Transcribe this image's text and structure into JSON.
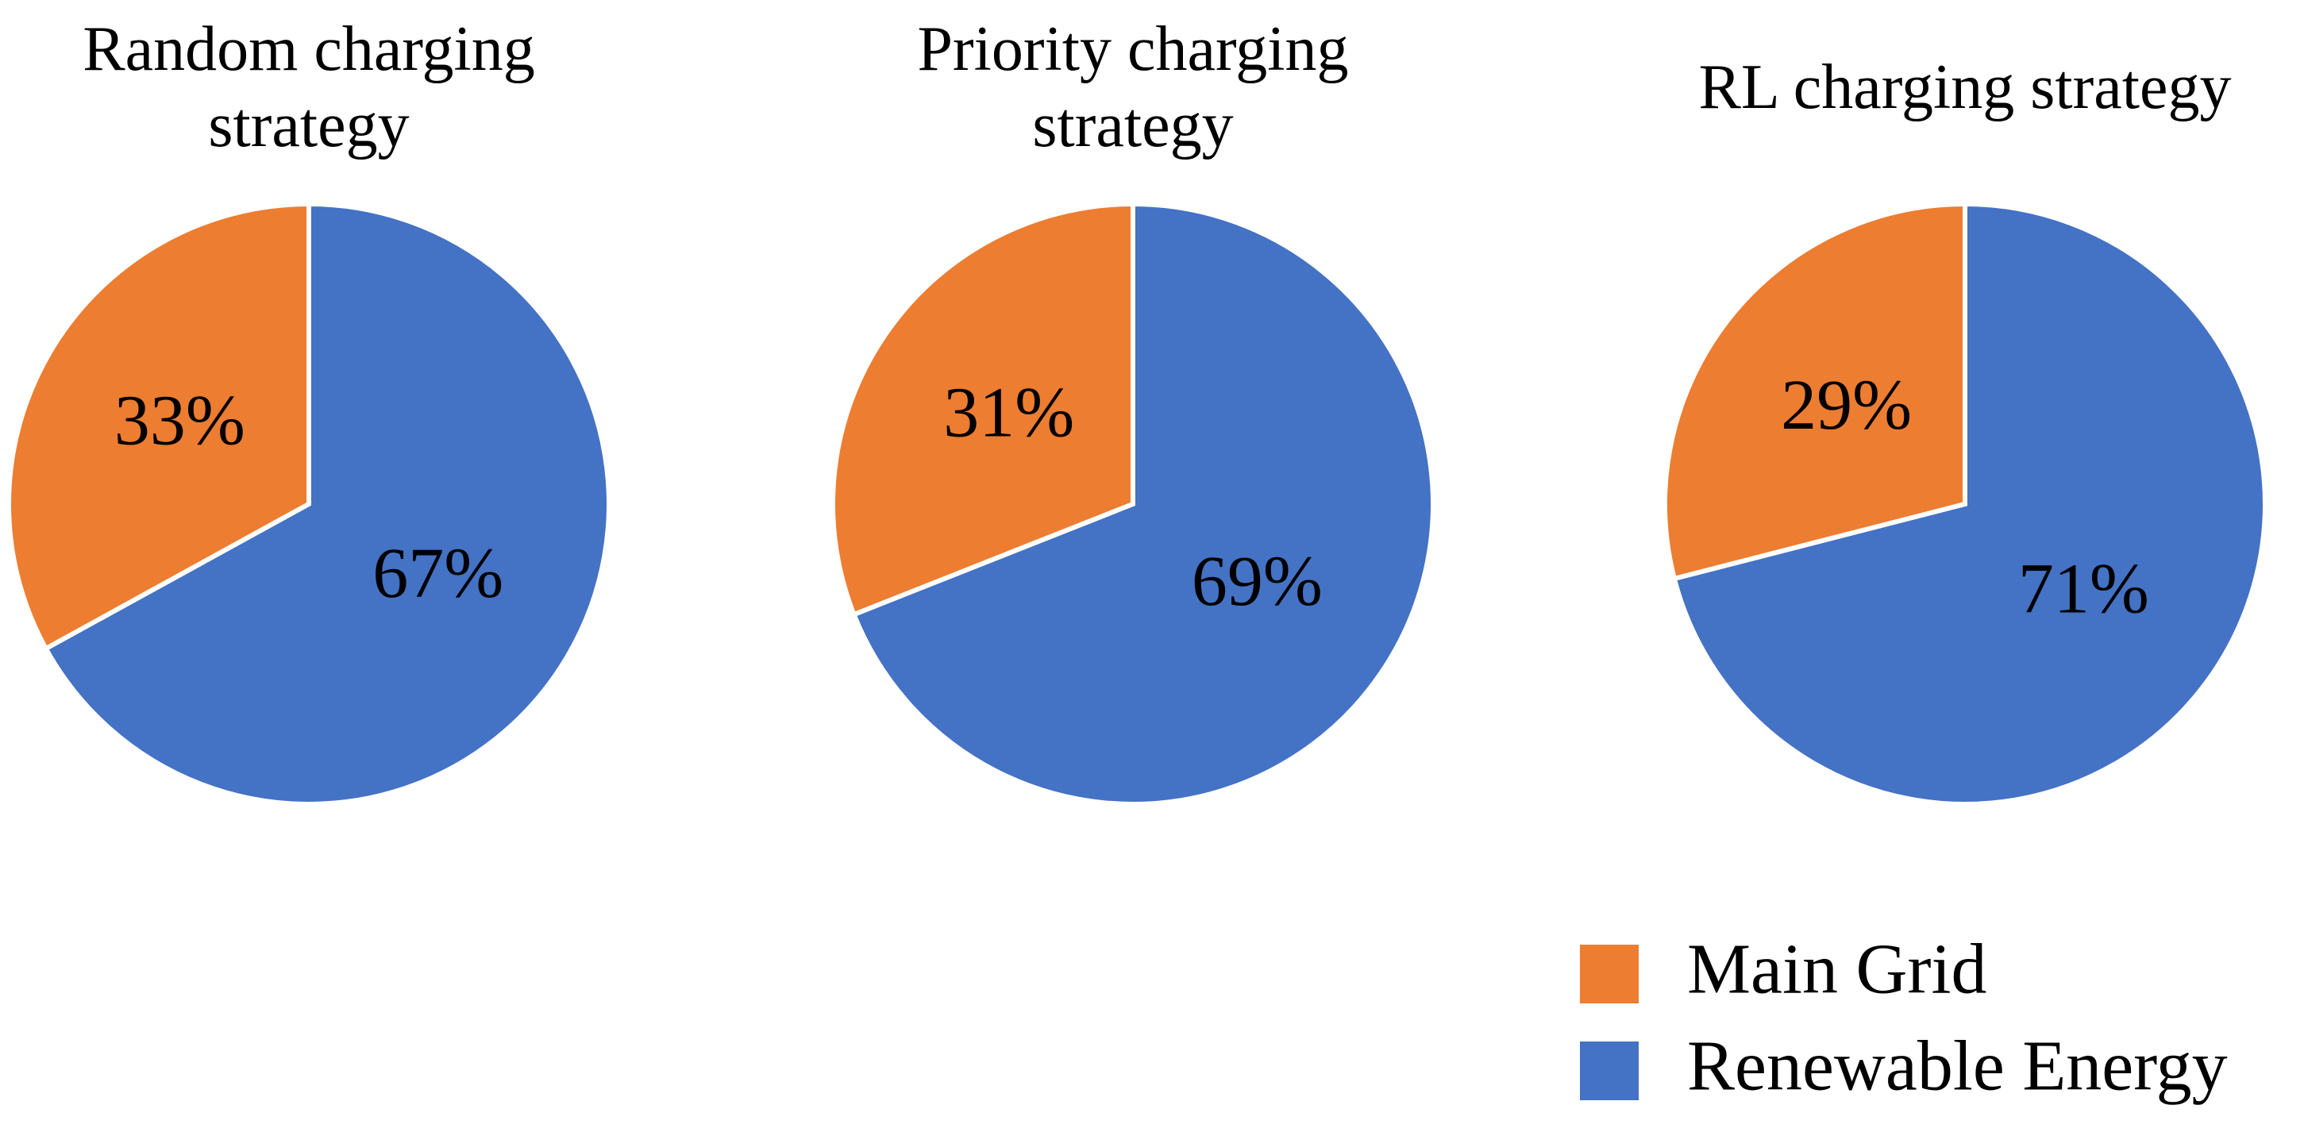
{
  "chart_data": [
    {
      "type": "pie",
      "title": "Random charging strategy",
      "categories": [
        "Main Grid",
        "Renewable Energy"
      ],
      "values": [
        33,
        67
      ],
      "value_labels": [
        "33%",
        "67%"
      ],
      "colors": [
        "#ed7d31",
        "#4472c4"
      ],
      "legend": "lower-right"
    },
    {
      "type": "pie",
      "title": "Priority charging strategy",
      "categories": [
        "Main Grid",
        "Renewable Energy"
      ],
      "values": [
        31,
        69
      ],
      "value_labels": [
        "31%",
        "69%"
      ],
      "colors": [
        "#ed7d31",
        "#4472c4"
      ]
    },
    {
      "type": "pie",
      "title": "RL charging strategy",
      "categories": [
        "Main Grid",
        "Renewable Energy"
      ],
      "values": [
        29,
        71
      ],
      "value_labels": [
        "29%",
        "71%"
      ],
      "colors": [
        "#ed7d31",
        "#4472c4"
      ]
    }
  ]
}
